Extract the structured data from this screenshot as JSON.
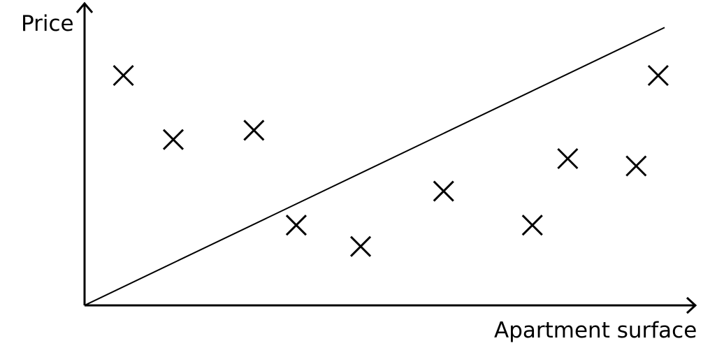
{
  "chart_data": {
    "type": "scatter",
    "title": "",
    "xlabel": "Apartment surface",
    "ylabel": "Price",
    "grid": false,
    "legend": "none",
    "xlim": [
      0,
      10
    ],
    "ylim": [
      0,
      10
    ],
    "series": [
      {
        "marker": "x",
        "points": [
          {
            "x": 0.67,
            "y": 9.4
          },
          {
            "x": 1.53,
            "y": 6.78
          },
          {
            "x": 2.92,
            "y": 7.16
          },
          {
            "x": 3.65,
            "y": 3.28
          },
          {
            "x": 4.76,
            "y": 2.41
          },
          {
            "x": 6.19,
            "y": 4.67
          },
          {
            "x": 7.72,
            "y": 3.28
          },
          {
            "x": 8.33,
            "y": 6.0
          },
          {
            "x": 9.51,
            "y": 5.7
          },
          {
            "x": 9.89,
            "y": 9.4
          }
        ]
      }
    ],
    "fit_line": {
      "x0": 0,
      "y0": 0,
      "x1": 10,
      "y1": 11.36
    }
  },
  "colors": {
    "axis": "#000000",
    "marker": "#000000",
    "line": "#000000"
  }
}
